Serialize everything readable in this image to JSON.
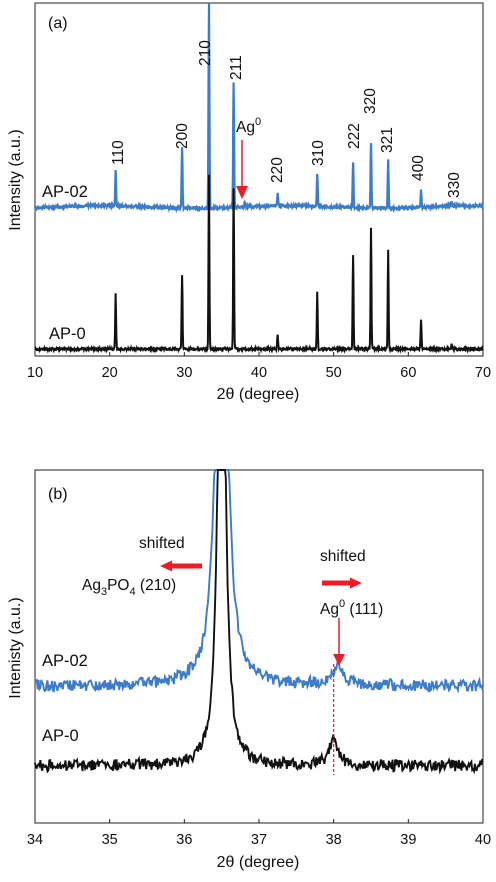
{
  "chart_data": [
    {
      "type": "line",
      "panel_label": "(a)",
      "xlabel": "2θ (degree)",
      "ylabel": "Intensity (a.u.)",
      "xlim": [
        10,
        70
      ],
      "x_ticks": [
        10,
        20,
        30,
        40,
        50,
        60,
        70
      ],
      "grid": false,
      "series": [
        {
          "name": "AP-02",
          "color": "#3d7cc9",
          "baseline": 0.4,
          "peaks": [
            {
              "x": 20.8,
              "y": 0.35
            },
            {
              "x": 29.7,
              "y": 0.6
            },
            {
              "x": 33.3,
              "y": 2.05
            },
            {
              "x": 36.6,
              "y": 1.25
            },
            {
              "x": 38.1,
              "y": 0.05
            },
            {
              "x": 42.5,
              "y": 0.12
            },
            {
              "x": 47.8,
              "y": 0.32
            },
            {
              "x": 52.6,
              "y": 0.45
            },
            {
              "x": 55.0,
              "y": 0.65
            },
            {
              "x": 57.3,
              "y": 0.48
            },
            {
              "x": 61.7,
              "y": 0.17
            },
            {
              "x": 65.8,
              "y": 0.05
            }
          ]
        },
        {
          "name": "AP-0",
          "color": "#111111",
          "baseline": 0.0,
          "peaks": [
            {
              "x": 20.8,
              "y": 0.55
            },
            {
              "x": 29.7,
              "y": 0.75
            },
            {
              "x": 33.3,
              "y": 1.75
            },
            {
              "x": 36.6,
              "y": 1.6
            },
            {
              "x": 42.5,
              "y": 0.15
            },
            {
              "x": 47.8,
              "y": 0.57
            },
            {
              "x": 52.6,
              "y": 0.95
            },
            {
              "x": 55.0,
              "y": 1.2
            },
            {
              "x": 57.3,
              "y": 1.0
            },
            {
              "x": 61.7,
              "y": 0.3
            },
            {
              "x": 65.8,
              "y": 0.06
            }
          ]
        }
      ],
      "annotations": [
        {
          "text": "110",
          "x": 20.8
        },
        {
          "text": "200",
          "x": 29.7
        },
        {
          "text": "210",
          "x": 33.3
        },
        {
          "text": "211",
          "x": 36.6
        },
        {
          "text": "220",
          "x": 42.5
        },
        {
          "text": "310",
          "x": 47.8
        },
        {
          "text": "222",
          "x": 52.6
        },
        {
          "text": "320",
          "x": 55.0
        },
        {
          "text": "321",
          "x": 57.3
        },
        {
          "text": "400",
          "x": 61.7
        },
        {
          "text": "330",
          "x": 65.8
        }
      ],
      "ag_marker": {
        "text": "Ag",
        "sup": "0",
        "x": 38.1,
        "color": "#ee1c25"
      }
    },
    {
      "type": "line",
      "panel_label": "(b)",
      "xlabel": "2θ (degree)",
      "ylabel": "Intenisty (a.u.)",
      "xlim": [
        34,
        40
      ],
      "x_ticks": [
        34,
        35,
        36,
        37,
        38,
        39,
        40
      ],
      "grid": false,
      "series": [
        {
          "name": "AP-02",
          "color": "#3d7cc9",
          "baseline": 0.3,
          "peaks": [
            {
              "x": 36.5,
              "width": 0.07,
              "y": 3.0
            },
            {
              "x": 38.05,
              "width": 0.09,
              "y": 0.09
            }
          ]
        },
        {
          "name": "AP-0",
          "color": "#111111",
          "baseline": 0.0,
          "peaks": [
            {
              "x": 36.5,
              "width": 0.05,
              "y": 3.0
            },
            {
              "x": 38.0,
              "width": 0.07,
              "y": 0.12
            }
          ]
        }
      ],
      "annotations": [
        {
          "text": "shifted",
          "x": 36.0
        },
        {
          "text": "Ag",
          "sub": "3",
          "text2": "PO",
          "sub2": "4",
          "text3": " (210)",
          "x": 35.7
        },
        {
          "text": "shifted",
          "x": 38.3
        },
        {
          "text": "Ag",
          "sup": "0",
          "text2": " (111)",
          "x": 38.3
        }
      ],
      "reference_x": 38.0,
      "arrow_color": "#ee1c25"
    }
  ]
}
